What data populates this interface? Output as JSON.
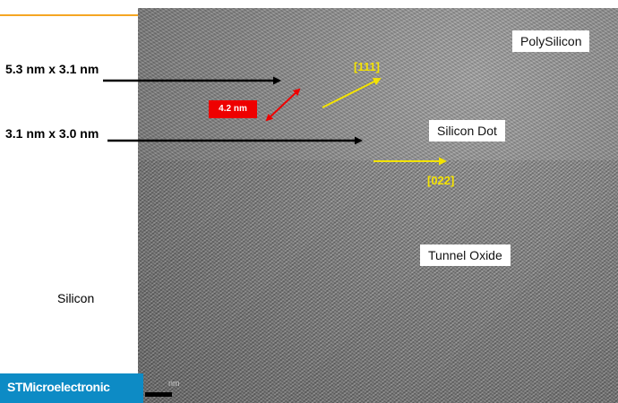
{
  "labels": {
    "size1": "5.3 nm x 3.1 nm",
    "size2": "3.1 nm x 3.0 nm",
    "silicon": "Silicon",
    "polysilicon": "PolySilicon",
    "silicon_dot": "Silicon Dot",
    "tunnel_oxide": "Tunnel Oxide",
    "direction_111": "[111]",
    "direction_022": "[022]",
    "distance": "4.2 nm"
  },
  "logo": {
    "text": "STMicroelectronic"
  },
  "scale": {
    "label": "nm"
  },
  "colors": {
    "accent_orange": "#f5a623",
    "logo_blue": "#0d8bc5",
    "arrow_yellow": "#f4e300",
    "measure_red": "#ee0000"
  }
}
